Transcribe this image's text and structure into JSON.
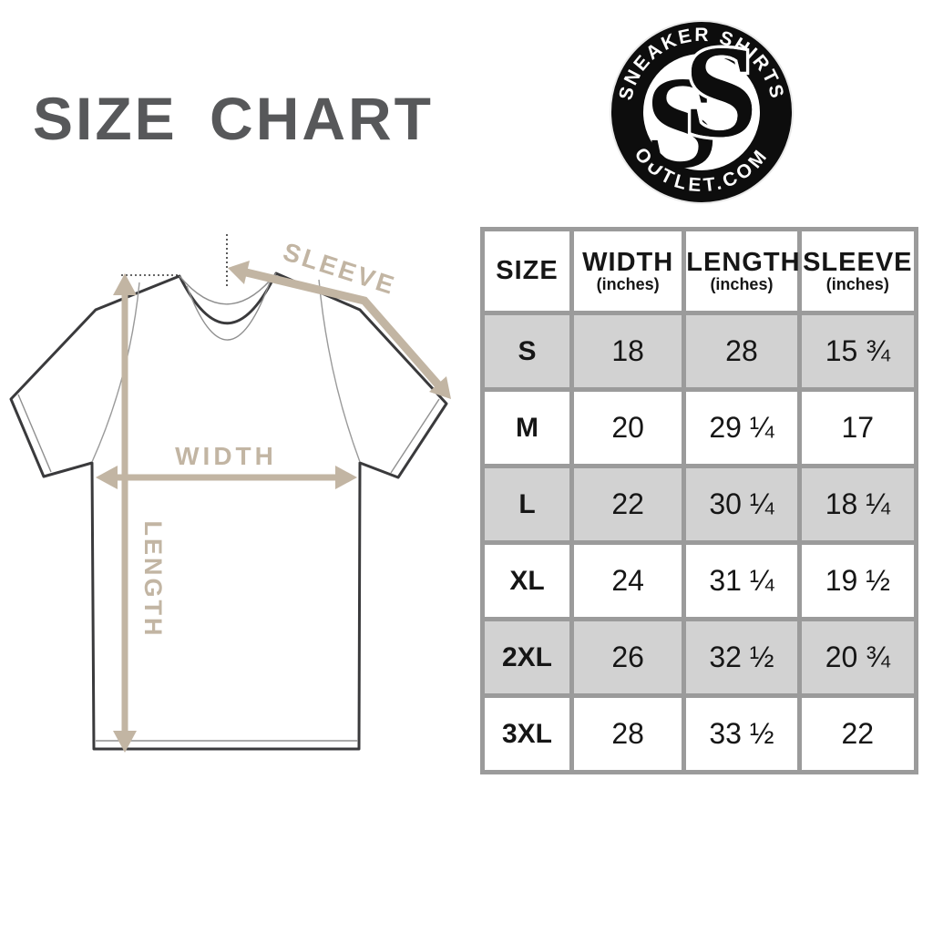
{
  "title": "SIZE CHART",
  "logo": {
    "top_text": "SNEAKER SHIRTS",
    "bottom_text": "OUTLET.COM",
    "monogram": "SS",
    "ring_color": "#0d0d0d",
    "text_color": "#ffffff"
  },
  "diagram": {
    "sleeve_label": "SLEEVE",
    "width_label": "WIDTH",
    "length_label": "LENGTH",
    "arrow_color": "#c2b5a3",
    "outline_color": "#3a3a3c"
  },
  "table": {
    "columns": [
      {
        "label": "SIZE",
        "sub": ""
      },
      {
        "label": "WIDTH",
        "sub": "(inches)"
      },
      {
        "label": "LENGTH",
        "sub": "(inches)"
      },
      {
        "label": "SLEEVE",
        "sub": "(inches)"
      }
    ],
    "rows": [
      {
        "size": "S",
        "width": "18",
        "length": "28",
        "sleeve": "15 ¾"
      },
      {
        "size": "M",
        "width": "20",
        "length": "29 ¼",
        "sleeve": "17"
      },
      {
        "size": "L",
        "width": "22",
        "length": "30 ¼",
        "sleeve": "18 ¼"
      },
      {
        "size": "XL",
        "width": "24",
        "length": "31 ¼",
        "sleeve": "19 ½"
      },
      {
        "size": "2XL",
        "width": "26",
        "length": "32 ½",
        "sleeve": "20 ¾"
      },
      {
        "size": "3XL",
        "width": "28",
        "length": "33 ½",
        "sleeve": "22"
      }
    ],
    "gray_row_color": "#d2d2d2",
    "border_color": "#9b9b9b"
  },
  "chart_data": {
    "type": "table",
    "title": "SIZE CHART",
    "columns": [
      "SIZE",
      "WIDTH (inches)",
      "LENGTH (inches)",
      "SLEEVE (inches)"
    ],
    "rows": [
      [
        "S",
        "18",
        "28",
        "15 ¾"
      ],
      [
        "M",
        "20",
        "29 ¼",
        "17"
      ],
      [
        "L",
        "22",
        "30 ¼",
        "18 ¼"
      ],
      [
        "XL",
        "24",
        "31 ¼",
        "19 ½"
      ],
      [
        "2XL",
        "26",
        "32 ½",
        "20 ¾"
      ],
      [
        "3XL",
        "28",
        "33 ½",
        "22"
      ]
    ],
    "notes": "T-shirt measurement diagram labels: SLEEVE, WIDTH, LENGTH; alternating gray/white rows"
  }
}
